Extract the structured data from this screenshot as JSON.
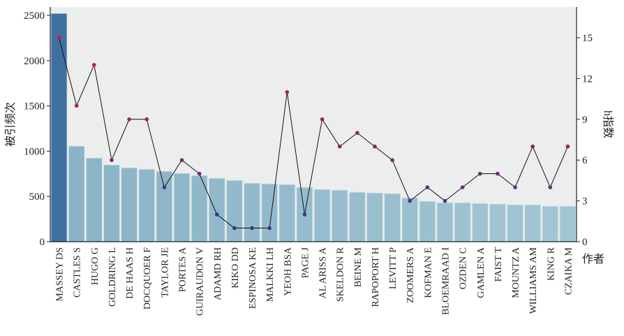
{
  "chart_data": {
    "type": "bar",
    "title": "",
    "xlabel": "作者",
    "ylabel": "被引频次",
    "y2label": "h指数",
    "ylim": [
      0,
      2593
    ],
    "y2lim": [
      0,
      17.26
    ],
    "yticks": [
      0,
      500,
      1000,
      1500,
      2000,
      2500
    ],
    "y2ticks": [
      0,
      3,
      6,
      9,
      12,
      15
    ],
    "categories": [
      "MASSEY DS",
      "CASTLES S",
      "HUGO G",
      "GOLDRING L",
      "DE HAAS H",
      "DOCQUOER F",
      "TAYLOR JE",
      "PORTES A",
      "GUIRAUDON V",
      "ADAMD RH",
      "KIKO DD",
      "ESPINOSA KE",
      "MALKKI LH",
      "YEOH BSA",
      "PAGE J",
      "AL ARISS A",
      "SKELDON R",
      "BEINE M",
      "RAPOPORT H",
      "LEVITT P",
      "ZOOMERS A",
      "KOFMAN E",
      "BLOEMRAAD I",
      "OZDEN C",
      "GAMLEN A",
      "FAIST T",
      "MOUNTZ A",
      "WILLIAMS AM",
      "KING R",
      "CZAIKA M"
    ],
    "series": [
      {
        "name": "被引频次",
        "type": "bar",
        "values": [
          2523,
          1057,
          926,
          849,
          818,
          802,
          779,
          756,
          733,
          702,
          679,
          648,
          640,
          633,
          602,
          579,
          571,
          548,
          540,
          532,
          486,
          448,
          432,
          432,
          424,
          417,
          409,
          409,
          394,
          394
        ]
      },
      {
        "name": "h指数",
        "type": "line",
        "values": [
          15,
          10,
          13,
          6,
          9,
          9,
          4,
          6,
          5,
          2,
          1,
          1,
          1,
          11,
          2,
          9,
          7,
          8,
          7,
          6,
          3,
          4,
          3,
          4,
          5,
          5,
          4,
          7,
          4,
          7
        ]
      }
    ],
    "colors": {
      "background": "#eceeed",
      "bar_top": "#3e70a0",
      "bar_light": "#8ab3c8",
      "bar_end": "#a2c6d3",
      "point_low": "#28399a",
      "point_high": "#d4104a"
    }
  }
}
